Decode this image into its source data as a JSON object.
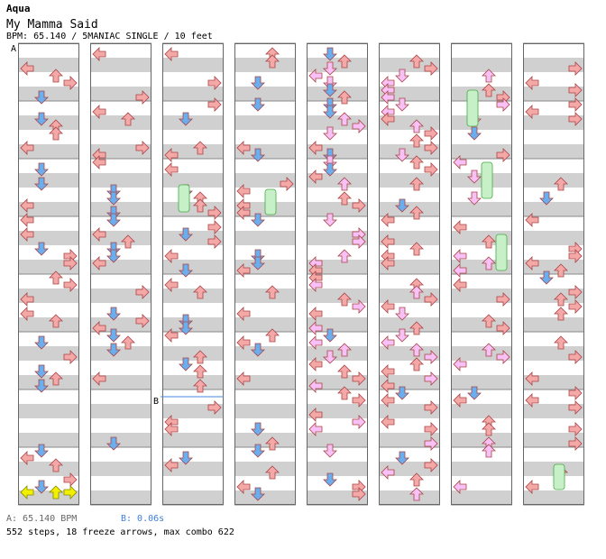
{
  "song": {
    "artist": "Aqua",
    "title": "My Mamma Said",
    "info": "BPM: 65.140 / 5MANIAC SINGLE / 10 feet"
  },
  "markers": {
    "a": "A",
    "b": "B"
  },
  "footer": {
    "bpm_legend": "A: 65.140 BPM",
    "stop_legend": "B: 0.06s",
    "stats": "552 steps, 18 freeze arrows, max combo 622"
  },
  "colors": {
    "left_arrow": "#f7b0b0",
    "down_arrow": "#6ab0f0",
    "up_arrow": "#f7b0b0",
    "right_arrow": "#f7b0b0",
    "quarter_blue": "#6ab0f0",
    "eighth_pink": "#f7c0f7",
    "freeze": "#c8f0c8",
    "jump_yellow": "#f0f000",
    "stripe": "#d0d0d0",
    "stop_line": "#4488dd"
  },
  "columns_count": 8
}
